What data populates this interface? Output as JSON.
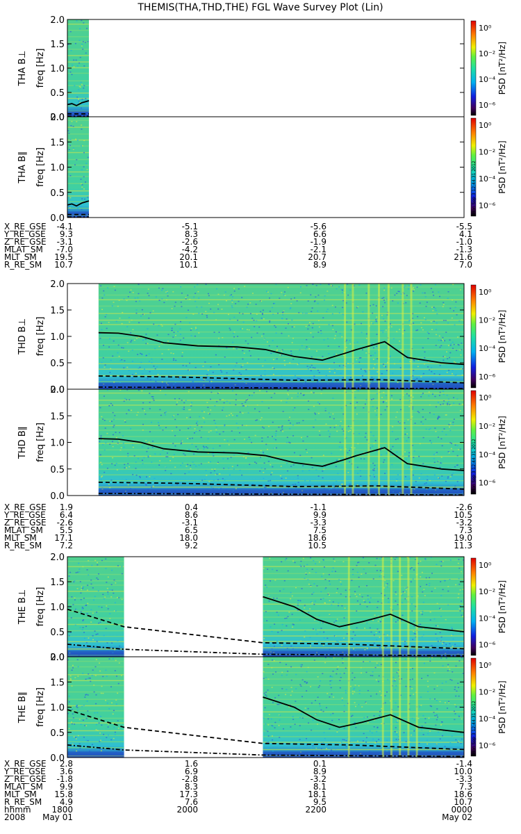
{
  "title": "THEMIS(THA,THD,THE) FGL Wave Survey Plot (Lin)",
  "colors": {
    "grid": "#000000",
    "bg": "#ffffff"
  },
  "colorbar": {
    "label": "PSD [nT²/Hz]",
    "ticks": [
      "10⁰",
      "10⁻²",
      "10⁻⁴",
      "10⁻⁶"
    ],
    "stamp": "Mon Sep 3 12:44:31 2012"
  },
  "yticks": [
    "0.0",
    "0.5",
    "1.0",
    "1.5",
    "2.0"
  ],
  "panels": [
    {
      "probe": "THA",
      "comp": "B⊥",
      "ylabel": "freq [Hz]"
    },
    {
      "probe": "THA",
      "comp": "B∥",
      "ylabel": "freq [Hz]"
    },
    {
      "probe": "THD",
      "comp": "B⊥",
      "ylabel": "freq [Hz]"
    },
    {
      "probe": "THD",
      "comp": "B∥",
      "ylabel": "freq [Hz]"
    },
    {
      "probe": "THE",
      "comp": "B⊥",
      "ylabel": "freq [Hz]"
    },
    {
      "probe": "THE",
      "comp": "B∥",
      "ylabel": "freq [Hz]"
    }
  ],
  "ephem": [
    {
      "labels": [
        "X_RE_GSE",
        "Y_RE_GSE",
        "Z_RE_GSE",
        "MLAT_SM",
        "MLT_SM",
        "R_RE_SM"
      ],
      "cols": [
        [
          "-4.1",
          "9.3",
          "-3.1",
          "-7.0",
          "19.5",
          "10.7"
        ],
        [
          "-5.1",
          "8.3",
          "-2.6",
          "-4.2",
          "20.1",
          "10.1"
        ],
        [
          "-5.6",
          "6.6",
          "-1.9",
          "-2.1",
          "20.7",
          "8.9"
        ],
        [
          "-5.5",
          "4.1",
          "-1.0",
          "-1.3",
          "21.6",
          "7.0"
        ]
      ]
    },
    {
      "labels": [
        "X_RE_GSE",
        "Y_RE_GSE",
        "Z_RE_GSE",
        "MLAT_SM",
        "MLT_SM",
        "R_RE_SM"
      ],
      "cols": [
        [
          "1.9",
          "6.4",
          "-2.6",
          "5.5",
          "17.1",
          "7.2"
        ],
        [
          "0.4",
          "8.6",
          "-3.1",
          "6.5",
          "18.0",
          "9.2"
        ],
        [
          "-1.1",
          "9.9",
          "-3.3",
          "7.5",
          "18.6",
          "10.5"
        ],
        [
          "-2.6",
          "10.5",
          "-3.2",
          "7.3",
          "19.0",
          "11.3"
        ]
      ]
    },
    {
      "labels": [
        "X_RE_GSE",
        "Y_RE_GSE",
        "Z_RE_GSE",
        "MLAT_SM",
        "MLT_SM",
        "R_RE_SM",
        "hhmm",
        "2008"
      ],
      "cols": [
        [
          "2.8",
          "3.6",
          "-1.8",
          "9.9",
          "15.8",
          "4.9",
          "1800",
          "May 01"
        ],
        [
          "1.6",
          "6.9",
          "-2.8",
          "8.3",
          "17.3",
          "7.6",
          "2000",
          ""
        ],
        [
          "0.1",
          "8.9",
          "-3.2",
          "8.1",
          "18.1",
          "9.5",
          "2200",
          ""
        ],
        [
          "-1.4",
          "10.0",
          "-3.3",
          "7.3",
          "18.6",
          "10.7",
          "0000",
          "May 02"
        ]
      ]
    }
  ],
  "chart_data": {
    "type": "heatmap",
    "title": "THEMIS(THA,THD,THE) FGL Wave Survey Plot (Lin)",
    "xlabel": "hhmm",
    "x_ticks": [
      "1800",
      "2000",
      "2200",
      "0000"
    ],
    "x_range": [
      "2008-05-01 17:00",
      "2008-05-02 00:00"
    ],
    "ylabel": "freq [Hz]",
    "ylim": [
      0,
      2.0
    ],
    "colorbar": {
      "label": "PSD [nT²/Hz]",
      "scale": "log",
      "range": [
        1e-07,
        10
      ]
    },
    "panels": [
      {
        "name": "THA B⊥",
        "data_coverage": [
          [
            0.0,
            0.38
          ]
        ],
        "fce_line": [
          [
            0.0,
            0.25
          ],
          [
            0.08,
            0.27
          ],
          [
            0.16,
            0.23
          ],
          [
            0.26,
            0.29
          ],
          [
            0.38,
            0.33
          ]
        ],
        "dashed_line": [
          [
            0.0,
            0.06
          ],
          [
            0.38,
            0.06
          ]
        ],
        "dashdot_line": [
          [
            0.0,
            0.01
          ],
          [
            0.38,
            0.01
          ]
        ]
      },
      {
        "name": "THA B∥",
        "data_coverage": [
          [
            0.0,
            0.38
          ]
        ],
        "fce_line": [
          [
            0.0,
            0.25
          ],
          [
            0.08,
            0.27
          ],
          [
            0.16,
            0.23
          ],
          [
            0.26,
            0.29
          ],
          [
            0.38,
            0.33
          ]
        ],
        "dashed_line": [
          [
            0.0,
            0.06
          ],
          [
            0.38,
            0.06
          ]
        ],
        "dashdot_line": [
          [
            0.0,
            0.01
          ],
          [
            0.38,
            0.01
          ]
        ]
      },
      {
        "name": "THD B⊥",
        "data_coverage": [
          [
            0.55,
            7.0
          ]
        ],
        "fce_line": [
          [
            0.55,
            1.07
          ],
          [
            0.9,
            1.06
          ],
          [
            1.3,
            1.0
          ],
          [
            1.7,
            0.88
          ],
          [
            2.3,
            0.82
          ],
          [
            3.0,
            0.8
          ],
          [
            3.5,
            0.75
          ],
          [
            4.0,
            0.62
          ],
          [
            4.5,
            0.55
          ],
          [
            4.9,
            0.68
          ],
          [
            5.1,
            0.75
          ],
          [
            5.6,
            0.9
          ],
          [
            6.0,
            0.6
          ],
          [
            6.6,
            0.5
          ],
          [
            7.0,
            0.47
          ]
        ],
        "dashed_line": [
          [
            0.55,
            0.25
          ],
          [
            2.0,
            0.23
          ],
          [
            4.0,
            0.17
          ],
          [
            5.5,
            0.18
          ],
          [
            7.0,
            0.12
          ]
        ],
        "dashdot_line": [
          [
            0.55,
            0.04
          ],
          [
            7.0,
            0.01
          ]
        ]
      },
      {
        "name": "THD B∥",
        "data_coverage": [
          [
            0.55,
            7.0
          ]
        ],
        "fce_line": [
          [
            0.55,
            1.07
          ],
          [
            0.9,
            1.06
          ],
          [
            1.3,
            1.0
          ],
          [
            1.7,
            0.88
          ],
          [
            2.3,
            0.82
          ],
          [
            3.0,
            0.8
          ],
          [
            3.5,
            0.75
          ],
          [
            4.0,
            0.62
          ],
          [
            4.5,
            0.55
          ],
          [
            4.9,
            0.68
          ],
          [
            5.1,
            0.75
          ],
          [
            5.6,
            0.9
          ],
          [
            6.0,
            0.6
          ],
          [
            6.6,
            0.5
          ],
          [
            7.0,
            0.47
          ]
        ],
        "dashed_line": [
          [
            0.55,
            0.25
          ],
          [
            2.0,
            0.23
          ],
          [
            4.0,
            0.17
          ],
          [
            5.5,
            0.18
          ],
          [
            7.0,
            0.12
          ]
        ],
        "dashdot_line": [
          [
            0.55,
            0.04
          ],
          [
            7.0,
            0.01
          ]
        ]
      },
      {
        "name": "THE B⊥",
        "data_coverage": [
          [
            0.0,
            1.0
          ],
          [
            3.45,
            7.0
          ]
        ],
        "fce_line": [
          [
            3.45,
            1.2
          ],
          [
            4.0,
            1.0
          ],
          [
            4.4,
            0.75
          ],
          [
            4.8,
            0.6
          ],
          [
            5.2,
            0.7
          ],
          [
            5.7,
            0.85
          ],
          [
            6.2,
            0.6
          ],
          [
            7.0,
            0.5
          ]
        ],
        "dashed_line": [
          [
            0.0,
            0.95
          ],
          [
            1.0,
            0.6
          ],
          [
            3.45,
            0.28
          ],
          [
            5.0,
            0.25
          ],
          [
            7.0,
            0.16
          ]
        ],
        "dashdot_line": [
          [
            0.0,
            0.25
          ],
          [
            1.0,
            0.15
          ],
          [
            3.45,
            0.05
          ],
          [
            7.0,
            0.02
          ]
        ]
      },
      {
        "name": "THE B∥",
        "data_coverage": [
          [
            0.0,
            1.0
          ],
          [
            3.45,
            7.0
          ]
        ],
        "fce_line": [
          [
            3.45,
            1.2
          ],
          [
            4.0,
            1.0
          ],
          [
            4.4,
            0.75
          ],
          [
            4.8,
            0.6
          ],
          [
            5.2,
            0.7
          ],
          [
            5.7,
            0.85
          ],
          [
            6.2,
            0.6
          ],
          [
            7.0,
            0.5
          ]
        ],
        "dashed_line": [
          [
            0.0,
            0.95
          ],
          [
            1.0,
            0.6
          ],
          [
            3.45,
            0.28
          ],
          [
            5.0,
            0.25
          ],
          [
            7.0,
            0.16
          ]
        ],
        "dashdot_line": [
          [
            0.0,
            0.25
          ],
          [
            1.0,
            0.15
          ],
          [
            3.45,
            0.05
          ],
          [
            7.0,
            0.02
          ]
        ]
      }
    ]
  }
}
